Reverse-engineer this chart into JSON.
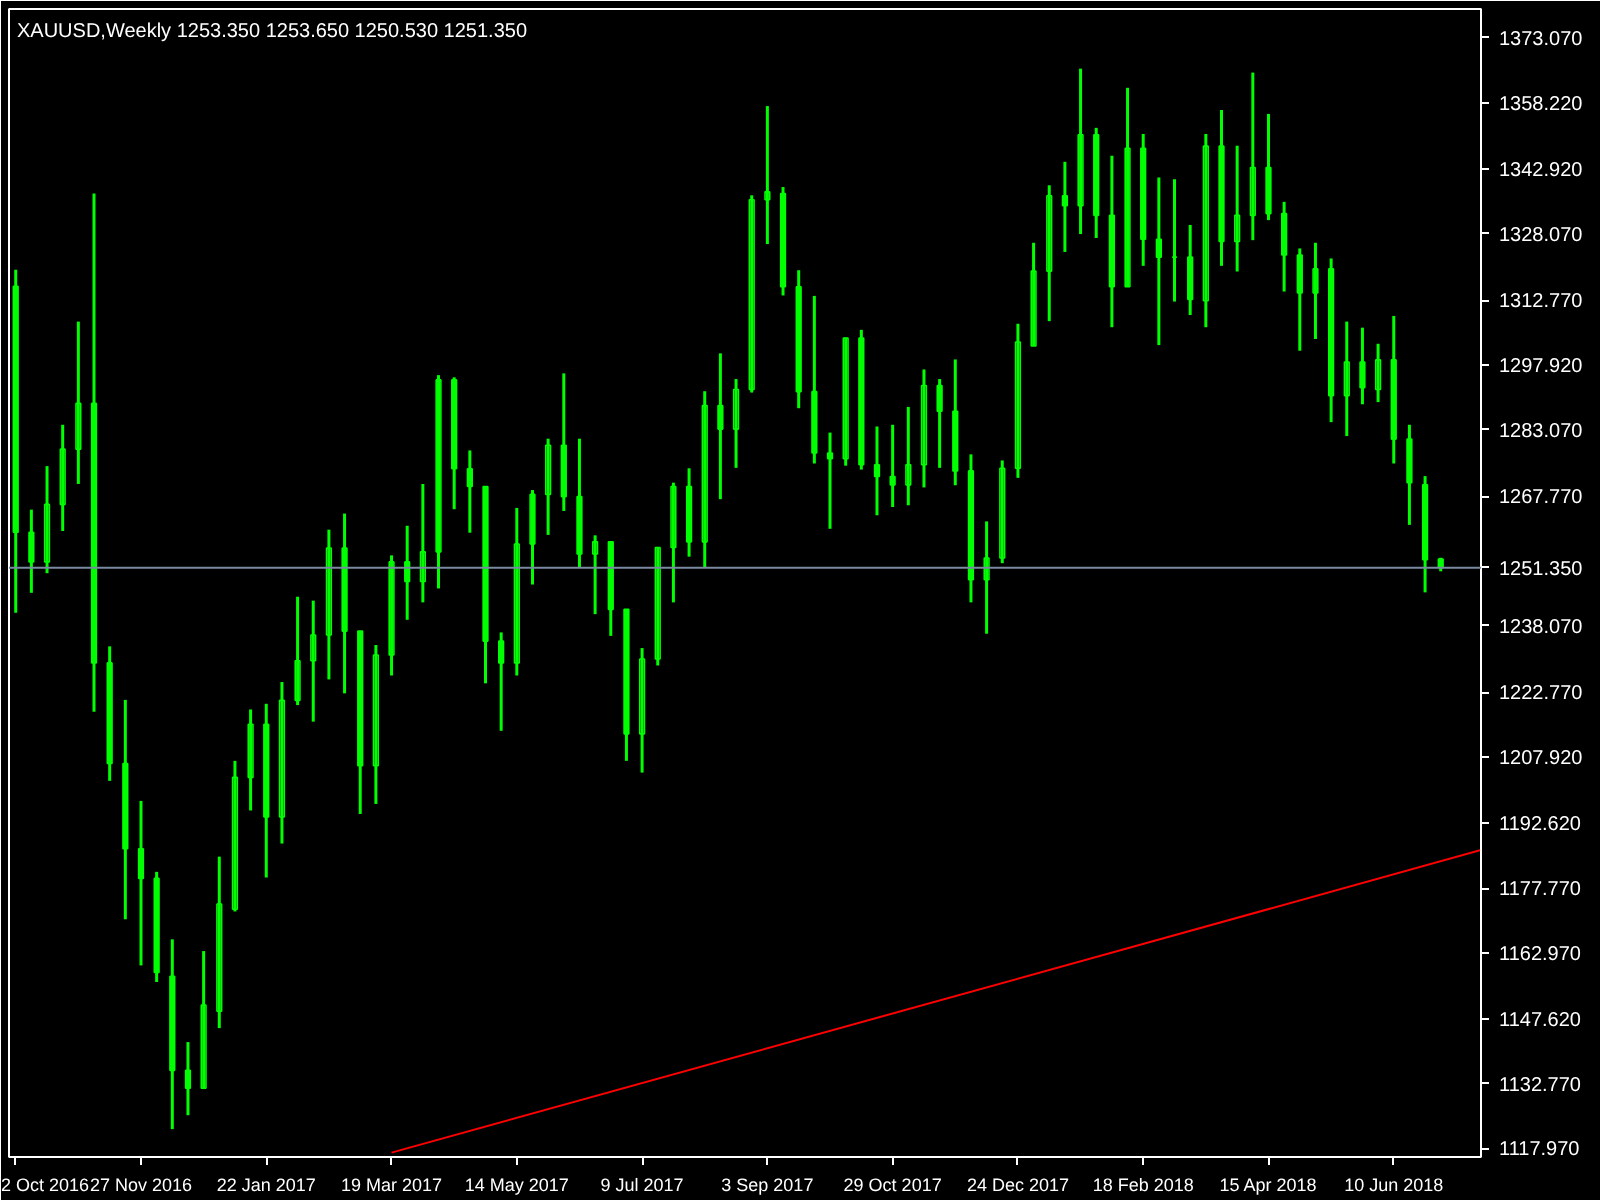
{
  "chart_data": {
    "type": "candlestick",
    "title": "XAUUSD,Weekly  1253.350 1253.650 1250.530 1251.350",
    "color": "#00ff00",
    "grid": false,
    "x": [
      "2016-10-02",
      "2016-10-09",
      "2016-10-16",
      "2016-10-23",
      "2016-10-30",
      "2016-11-06",
      "2016-11-13",
      "2016-11-20",
      "2016-11-27",
      "2016-12-04",
      "2016-12-11",
      "2016-12-18",
      "2016-12-25",
      "2017-01-01",
      "2017-01-08",
      "2017-01-15",
      "2017-01-22",
      "2017-01-29",
      "2017-02-05",
      "2017-02-12",
      "2017-02-19",
      "2017-02-26",
      "2017-03-05",
      "2017-03-12",
      "2017-03-19",
      "2017-03-26",
      "2017-04-02",
      "2017-04-09",
      "2017-04-16",
      "2017-04-23",
      "2017-04-30",
      "2017-05-07",
      "2017-05-14",
      "2017-05-21",
      "2017-05-28",
      "2017-06-04",
      "2017-06-11",
      "2017-06-18",
      "2017-06-25",
      "2017-07-02",
      "2017-07-09",
      "2017-07-16",
      "2017-07-23",
      "2017-07-30",
      "2017-08-06",
      "2017-08-13",
      "2017-08-20",
      "2017-08-27",
      "2017-09-03",
      "2017-09-10",
      "2017-09-17",
      "2017-09-24",
      "2017-10-01",
      "2017-10-08",
      "2017-10-15",
      "2017-10-22",
      "2017-10-29",
      "2017-11-05",
      "2017-11-12",
      "2017-11-19",
      "2017-11-26",
      "2017-12-03",
      "2017-12-10",
      "2017-12-17",
      "2017-12-24",
      "2017-12-31",
      "2018-01-07",
      "2018-01-14",
      "2018-01-21",
      "2018-01-28",
      "2018-02-04",
      "2018-02-11",
      "2018-02-18",
      "2018-02-25",
      "2018-03-04",
      "2018-03-11",
      "2018-03-18",
      "2018-03-25",
      "2018-04-01",
      "2018-04-08",
      "2018-04-15",
      "2018-04-22",
      "2018-04-29",
      "2018-05-06",
      "2018-05-13",
      "2018-05-20",
      "2018-05-27",
      "2018-06-03",
      "2018-06-10",
      "2018-06-17",
      "2018-06-24",
      "2018-07-01"
    ],
    "ohlc": [
      [
        1316.0,
        1319.8,
        1241.0,
        1259.5
      ],
      [
        1259.5,
        1264.7,
        1245.6,
        1252.7
      ],
      [
        1252.7,
        1274.7,
        1250.1,
        1265.9
      ],
      [
        1265.9,
        1284.2,
        1259.8,
        1278.6
      ],
      [
        1278.6,
        1307.9,
        1270.6,
        1289.1
      ],
      [
        1289.1,
        1337.3,
        1218.3,
        1229.5
      ],
      [
        1229.5,
        1233.3,
        1202.4,
        1206.4
      ],
      [
        1206.4,
        1221.0,
        1170.6,
        1186.8
      ],
      [
        1186.8,
        1197.8,
        1160.0,
        1180.0
      ],
      [
        1180.0,
        1181.5,
        1156.2,
        1158.4
      ],
      [
        1157.5,
        1166.0,
        1122.4,
        1135.9
      ],
      [
        1135.9,
        1142.4,
        1125.6,
        1131.8
      ],
      [
        1131.8,
        1163.3,
        1131.6,
        1150.9
      ],
      [
        1149.5,
        1185.0,
        1145.6,
        1174.1
      ],
      [
        1172.9,
        1207.0,
        1172.4,
        1203.2
      ],
      [
        1203.2,
        1218.8,
        1195.6,
        1215.4
      ],
      [
        1215.4,
        1220.1,
        1180.2,
        1194.1
      ],
      [
        1194.1,
        1225.1,
        1188.0,
        1220.9
      ],
      [
        1220.9,
        1244.7,
        1219.8,
        1230.0
      ],
      [
        1230.0,
        1243.8,
        1216.0,
        1235.9
      ],
      [
        1235.9,
        1260.1,
        1225.7,
        1255.9
      ],
      [
        1255.9,
        1263.8,
        1222.5,
        1236.8
      ],
      [
        1236.8,
        1236.8,
        1194.8,
        1205.9
      ],
      [
        1205.9,
        1233.6,
        1197.1,
        1231.3
      ],
      [
        1231.3,
        1254.2,
        1226.6,
        1252.7
      ],
      [
        1252.7,
        1261.0,
        1239.4,
        1248.2
      ],
      [
        1248.2,
        1270.6,
        1243.4,
        1255.0
      ],
      [
        1255.0,
        1295.6,
        1246.6,
        1294.5
      ],
      [
        1294.5,
        1295.1,
        1264.8,
        1274.1
      ],
      [
        1274.1,
        1278.3,
        1259.4,
        1270.0
      ],
      [
        1270.0,
        1270.1,
        1224.8,
        1234.5
      ],
      [
        1234.5,
        1236.5,
        1213.9,
        1229.5
      ],
      [
        1229.5,
        1265.1,
        1226.6,
        1256.8
      ],
      [
        1256.8,
        1269.2,
        1247.5,
        1268.2
      ],
      [
        1268.2,
        1281.0,
        1258.9,
        1279.5
      ],
      [
        1279.5,
        1296.0,
        1264.4,
        1267.7
      ],
      [
        1267.7,
        1281.0,
        1251.4,
        1254.5
      ],
      [
        1254.5,
        1258.8,
        1240.7,
        1257.3
      ],
      [
        1257.3,
        1257.3,
        1235.7,
        1241.8
      ],
      [
        1241.8,
        1241.8,
        1207.0,
        1213.2
      ],
      [
        1213.2,
        1232.9,
        1204.3,
        1230.4
      ],
      [
        1230.4,
        1256.0,
        1228.9,
        1256.0
      ],
      [
        1256.0,
        1270.9,
        1243.4,
        1270.0
      ],
      [
        1270.0,
        1274.2,
        1253.9,
        1257.3
      ],
      [
        1257.3,
        1291.9,
        1251.4,
        1288.6
      ],
      [
        1288.6,
        1300.6,
        1267.1,
        1283.2
      ],
      [
        1283.2,
        1294.7,
        1274.3,
        1292.3
      ],
      [
        1292.3,
        1336.9,
        1291.6,
        1335.9
      ],
      [
        1335.9,
        1357.4,
        1325.7,
        1337.7
      ],
      [
        1337.3,
        1338.8,
        1313.9,
        1315.9
      ],
      [
        1315.9,
        1319.7,
        1288.0,
        1291.8
      ],
      [
        1291.8,
        1313.8,
        1275.3,
        1277.7
      ],
      [
        1277.7,
        1282.4,
        1260.3,
        1276.4
      ],
      [
        1276.4,
        1304.2,
        1274.8,
        1304.1
      ],
      [
        1304.1,
        1306.0,
        1273.9,
        1275.0
      ],
      [
        1275.0,
        1283.8,
        1263.4,
        1272.3
      ],
      [
        1272.3,
        1284.2,
        1265.3,
        1270.4
      ],
      [
        1270.4,
        1288.3,
        1265.7,
        1275.0
      ],
      [
        1275.0,
        1296.9,
        1269.8,
        1293.2
      ],
      [
        1293.2,
        1294.7,
        1274.3,
        1287.3
      ],
      [
        1287.3,
        1299.2,
        1270.3,
        1273.6
      ],
      [
        1273.6,
        1277.4,
        1243.4,
        1248.6
      ],
      [
        1248.6,
        1262.0,
        1236.2,
        1253.6
      ],
      [
        1253.6,
        1276.0,
        1252.4,
        1274.2
      ],
      [
        1274.2,
        1307.4,
        1272.0,
        1303.2
      ],
      [
        1302.3,
        1326.0,
        1302.3,
        1319.5
      ],
      [
        1319.5,
        1339.2,
        1308.0,
        1336.8
      ],
      [
        1336.8,
        1344.6,
        1323.9,
        1334.5
      ],
      [
        1334.5,
        1366.0,
        1328.0,
        1350.8
      ],
      [
        1350.8,
        1352.4,
        1327.1,
        1332.3
      ],
      [
        1332.3,
        1346.0,
        1306.6,
        1315.9
      ],
      [
        1315.9,
        1361.6,
        1315.9,
        1347.7
      ],
      [
        1347.7,
        1351.0,
        1320.7,
        1326.8
      ],
      [
        1326.8,
        1341.0,
        1302.5,
        1322.7
      ],
      [
        1322.7,
        1340.6,
        1312.5,
        1322.7
      ],
      [
        1322.7,
        1330.1,
        1309.4,
        1313.0
      ],
      [
        1312.7,
        1351.0,
        1306.6,
        1348.2
      ],
      [
        1348.2,
        1356.5,
        1320.7,
        1326.3
      ],
      [
        1326.3,
        1348.3,
        1319.4,
        1332.3
      ],
      [
        1332.3,
        1365.1,
        1326.6,
        1343.3
      ],
      [
        1343.3,
        1355.6,
        1331.2,
        1332.7
      ],
      [
        1332.7,
        1335.4,
        1314.8,
        1323.2
      ],
      [
        1323.2,
        1324.7,
        1301.2,
        1314.5
      ],
      [
        1314.5,
        1326.0,
        1303.9,
        1320.0
      ],
      [
        1320.0,
        1322.4,
        1284.8,
        1290.9
      ],
      [
        1290.9,
        1307.9,
        1281.6,
        1298.6
      ],
      [
        1298.6,
        1306.5,
        1288.9,
        1292.7
      ],
      [
        1292.3,
        1302.8,
        1289.4,
        1299.1
      ],
      [
        1299.1,
        1309.2,
        1275.3,
        1280.9
      ],
      [
        1280.9,
        1284.2,
        1261.2,
        1270.9
      ],
      [
        1270.4,
        1272.4,
        1245.7,
        1253.2
      ],
      [
        1253.35,
        1253.65,
        1250.53,
        1251.35
      ]
    ],
    "series": [
      {
        "type": "line",
        "x": [
          "2017-03-19",
          "2018-07-19"
        ],
        "values": [
          1117.0,
          1186.5
        ],
        "color": "#ff0000"
      }
    ],
    "xlim": [
      "2016-09-29",
      "2018-07-19"
    ],
    "xticks": [
      {
        "value": "2016-10-02",
        "label": "2 Oct 2016"
      },
      {
        "value": "2016-11-27",
        "label": "27 Nov 2016"
      },
      {
        "value": "2017-01-22",
        "label": "22 Jan 2017"
      },
      {
        "value": "2017-03-19",
        "label": "19 Mar 2017"
      },
      {
        "value": "2017-05-14",
        "label": "14 May 2017"
      },
      {
        "value": "2017-07-09",
        "label": "9 Jul 2017"
      },
      {
        "value": "2017-09-03",
        "label": "3 Sep 2017"
      },
      {
        "value": "2017-10-29",
        "label": "29 Oct 2017"
      },
      {
        "value": "2017-12-24",
        "label": "24 Dec 2017"
      },
      {
        "value": "2018-02-18",
        "label": "18 Feb 2018"
      },
      {
        "value": "2018-04-15",
        "label": "15 Apr 2018"
      },
      {
        "value": "2018-06-10",
        "label": "10 Jun 2018"
      }
    ],
    "ylim": [
      1116.0,
      1379.7
    ],
    "yticks": [
      {
        "value": 1117.97,
        "label": "1117.970"
      },
      {
        "value": 1132.77,
        "label": "1132.770"
      },
      {
        "value": 1147.62,
        "label": "1147.620"
      },
      {
        "value": 1162.97,
        "label": "1162.970"
      },
      {
        "value": 1177.77,
        "label": "1177.770"
      },
      {
        "value": 1192.62,
        "label": "1192.620"
      },
      {
        "value": 1207.92,
        "label": "1207.920"
      },
      {
        "value": 1222.77,
        "label": "1222.770"
      },
      {
        "value": 1238.07,
        "label": "1238.070"
      },
      {
        "value": 1267.77,
        "label": "1267.770"
      },
      {
        "value": 1283.07,
        "label": "1283.070"
      },
      {
        "value": 1297.92,
        "label": "1297.920"
      },
      {
        "value": 1312.77,
        "label": "1312.770"
      },
      {
        "value": 1328.07,
        "label": "1328.070"
      },
      {
        "value": 1342.92,
        "label": "1342.920"
      },
      {
        "value": 1358.22,
        "label": "1358.220"
      },
      {
        "value": 1373.07,
        "label": "1373.070"
      }
    ],
    "ref_lines": [
      {
        "axis": "y",
        "value": 1251.35,
        "label": "1251.350",
        "color": "#7a8aa0"
      }
    ]
  }
}
